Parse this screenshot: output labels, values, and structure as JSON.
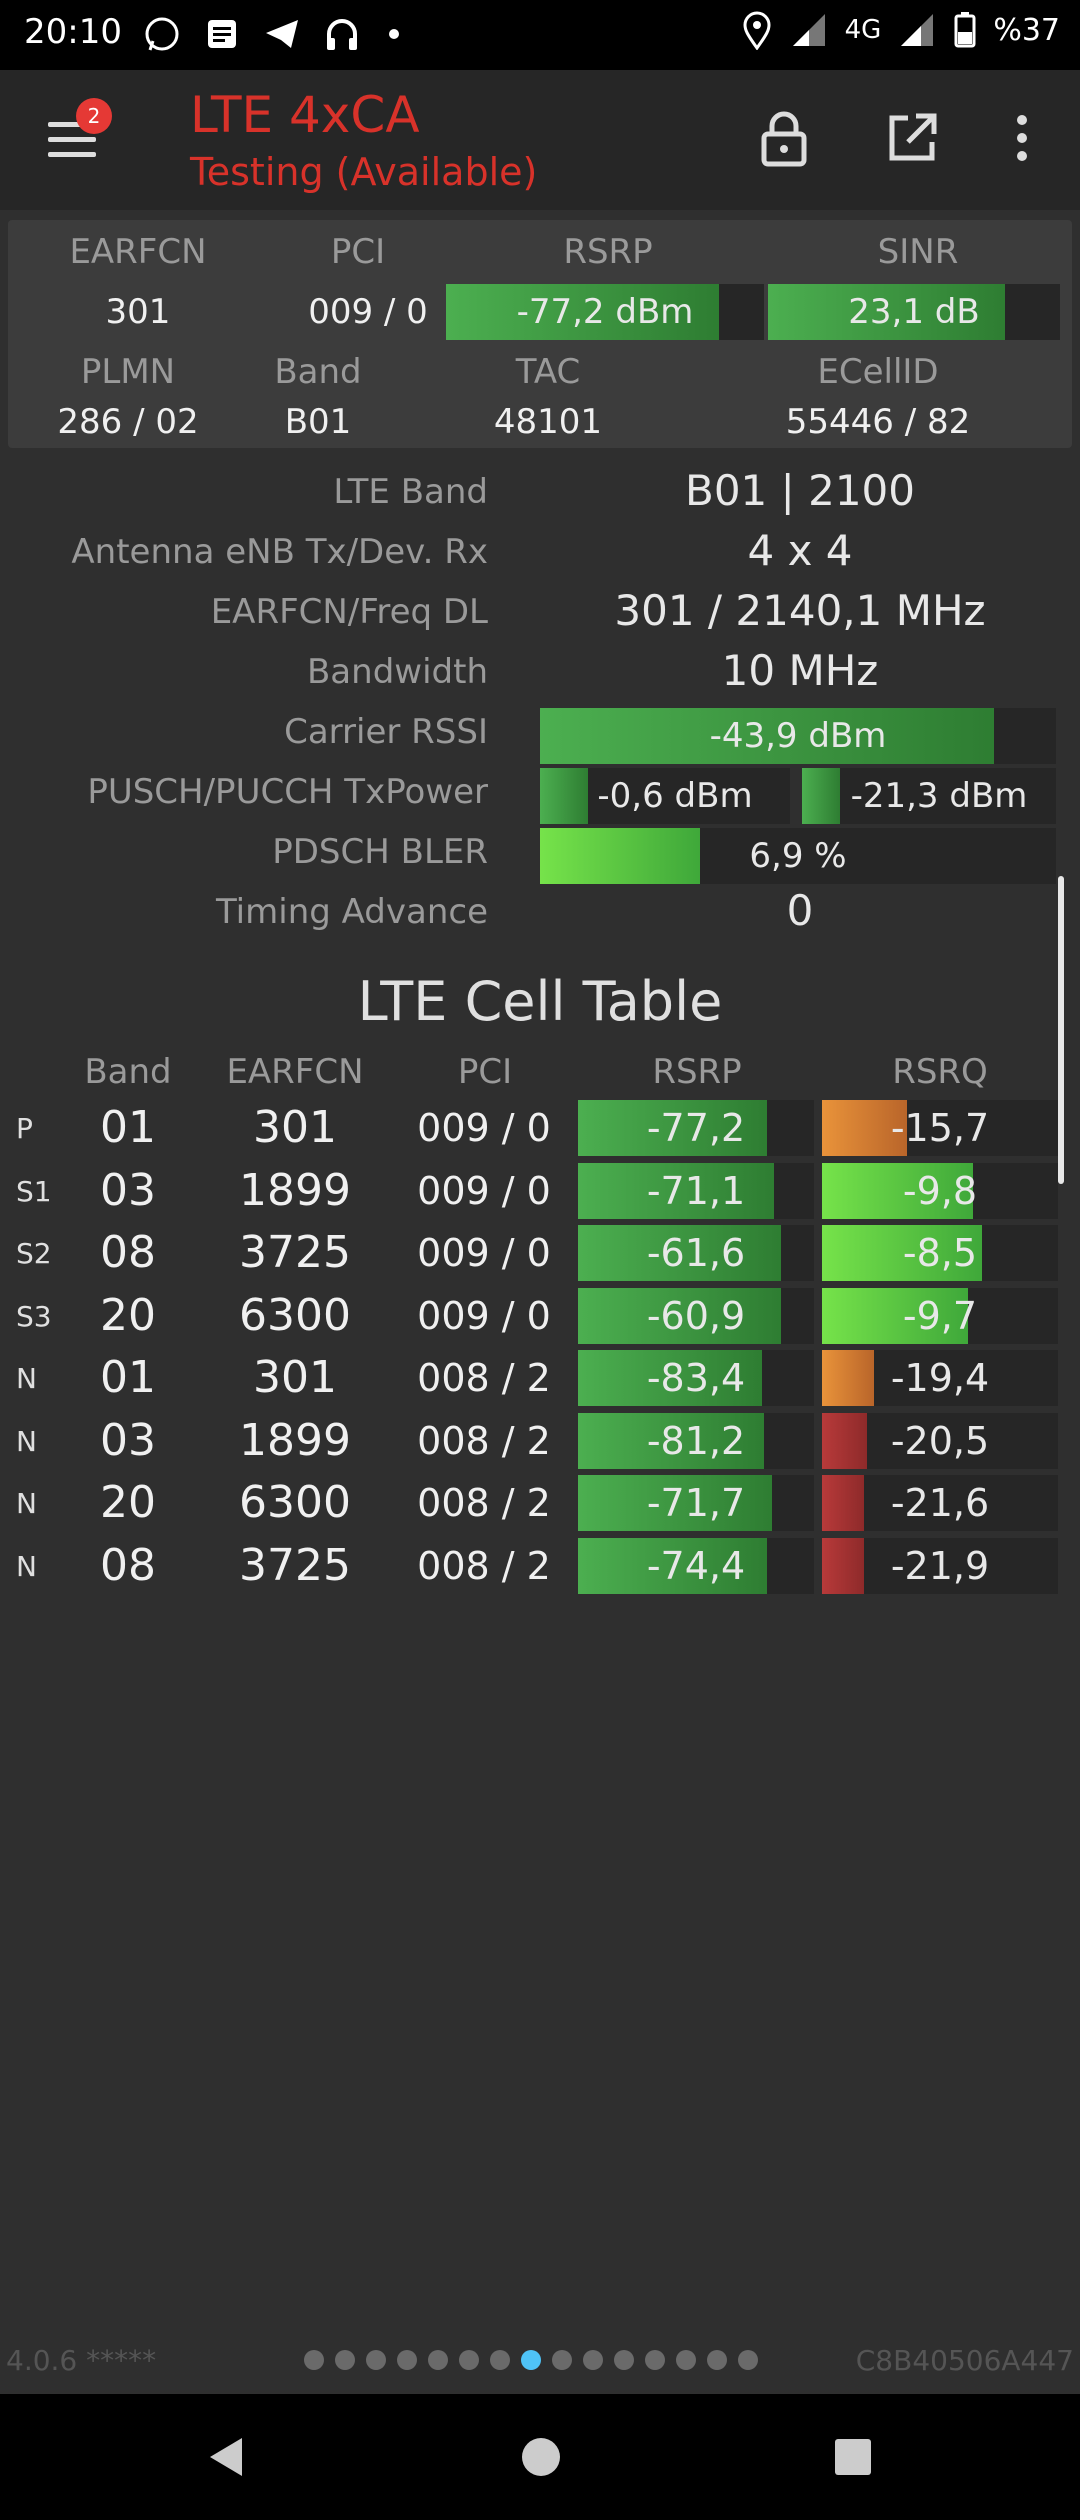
{
  "status_bar": {
    "time": "20:10",
    "network": "4G",
    "battery": "%37",
    "icons": [
      "whatsapp-icon",
      "message-icon",
      "telegram-icon",
      "headphones-icon",
      "dot-icon",
      "location-icon",
      "signal-icon",
      "signal-icon",
      "battery-icon"
    ]
  },
  "app_bar": {
    "title": "LTE 4xCA",
    "subtitle": "Testing (Available)",
    "badge_count": "2",
    "title_color": "#d8322a"
  },
  "summary": {
    "labels": {
      "earfcn": "EARFCN",
      "pci": "PCI",
      "rsrp": "RSRP",
      "sinr": "SINR",
      "plmn": "PLMN",
      "band": "Band",
      "tac": "TAC",
      "ecellid": "ECellID"
    },
    "earfcn": "301",
    "pci": "009 / 0",
    "rsrp": {
      "text": "-77,2 dBm",
      "level": 0.86
    },
    "sinr": {
      "text": "23,1 dB",
      "level": 0.81
    },
    "plmn": "286 / 02",
    "band": "B01",
    "tac": "48101",
    "ecellid": "55446 / 82"
  },
  "details": {
    "lte_band": {
      "label": "LTE Band",
      "value": "B01 | 2100"
    },
    "antenna": {
      "label": "Antenna eNB Tx/Dev. Rx",
      "value": "4 x 4"
    },
    "earfcn_freq": {
      "label": "EARFCN/Freq DL",
      "value": "301 / 2140,1 MHz"
    },
    "bandwidth": {
      "label": "Bandwidth",
      "value": "10 MHz"
    },
    "carrier_rssi": {
      "label": "Carrier RSSI",
      "value": "-43,9 dBm",
      "level": 0.88
    },
    "txpower": {
      "label": "PUSCH/PUCCH TxPower",
      "pusch": "-0,6 dBm",
      "pucch": "-21,3 dBm",
      "pusch_level": 0.19,
      "pucch_level": 0.15
    },
    "bler": {
      "label": "PDSCH BLER",
      "value": "6,9 %",
      "level": 0.31
    },
    "timing_advance": {
      "label": "Timing Advance",
      "value": "0"
    }
  },
  "cell_table": {
    "title": "LTE Cell Table",
    "headers": {
      "band": "Band",
      "earfcn": "EARFCN",
      "pci": "PCI",
      "rsrp": "RSRP",
      "rsrq": "RSRQ"
    },
    "rows": [
      {
        "type": "P",
        "band": "01",
        "earfcn": "301",
        "pci": "009 / 0",
        "rsrp": "-77,2",
        "rsrp_level": 0.8,
        "rsrq": "-15,7",
        "rsrq_level": 0.36,
        "rsrq_color": "orange"
      },
      {
        "type": "S1",
        "band": "03",
        "earfcn": "1899",
        "pci": "009 / 0",
        "rsrp": "-71,1",
        "rsrp_level": 0.83,
        "rsrq": "-9,8",
        "rsrq_level": 0.64,
        "rsrq_color": "bright"
      },
      {
        "type": "S2",
        "band": "08",
        "earfcn": "3725",
        "pci": "009 / 0",
        "rsrp": "-61,6",
        "rsrp_level": 0.86,
        "rsrq": "-8,5",
        "rsrq_level": 0.68,
        "rsrq_color": "bright"
      },
      {
        "type": "S3",
        "band": "20",
        "earfcn": "6300",
        "pci": "009 / 0",
        "rsrp": "-60,9",
        "rsrp_level": 0.86,
        "rsrq": "-9,7",
        "rsrq_level": 0.62,
        "rsrq_color": "bright"
      },
      {
        "type": "N",
        "band": "01",
        "earfcn": "301",
        "pci": "008 / 2",
        "rsrp": "-83,4",
        "rsrp_level": 0.78,
        "rsrq": "-19,4",
        "rsrq_level": 0.22,
        "rsrq_color": "orange"
      },
      {
        "type": "N",
        "band": "03",
        "earfcn": "1899",
        "pci": "008 / 2",
        "rsrp": "-81,2",
        "rsrp_level": 0.79,
        "rsrq": "-20,5",
        "rsrq_level": 0.19,
        "rsrq_color": "red"
      },
      {
        "type": "N",
        "band": "20",
        "earfcn": "6300",
        "pci": "008 / 2",
        "rsrp": "-71,7",
        "rsrp_level": 0.82,
        "rsrq": "-21,6",
        "rsrq_level": 0.18,
        "rsrq_color": "red"
      },
      {
        "type": "N",
        "band": "08",
        "earfcn": "3725",
        "pci": "008 / 2",
        "rsrp": "-74,4",
        "rsrp_level": 0.8,
        "rsrq": "-21,9",
        "rsrq_level": 0.18,
        "rsrq_color": "red"
      }
    ]
  },
  "footer": {
    "version": "4.0.6 *****",
    "device_id": "C8B40506A447",
    "page_count": 15,
    "active_page": 8
  },
  "nav_bar": {
    "icons": [
      "back-icon",
      "home-icon",
      "recents-icon"
    ]
  }
}
